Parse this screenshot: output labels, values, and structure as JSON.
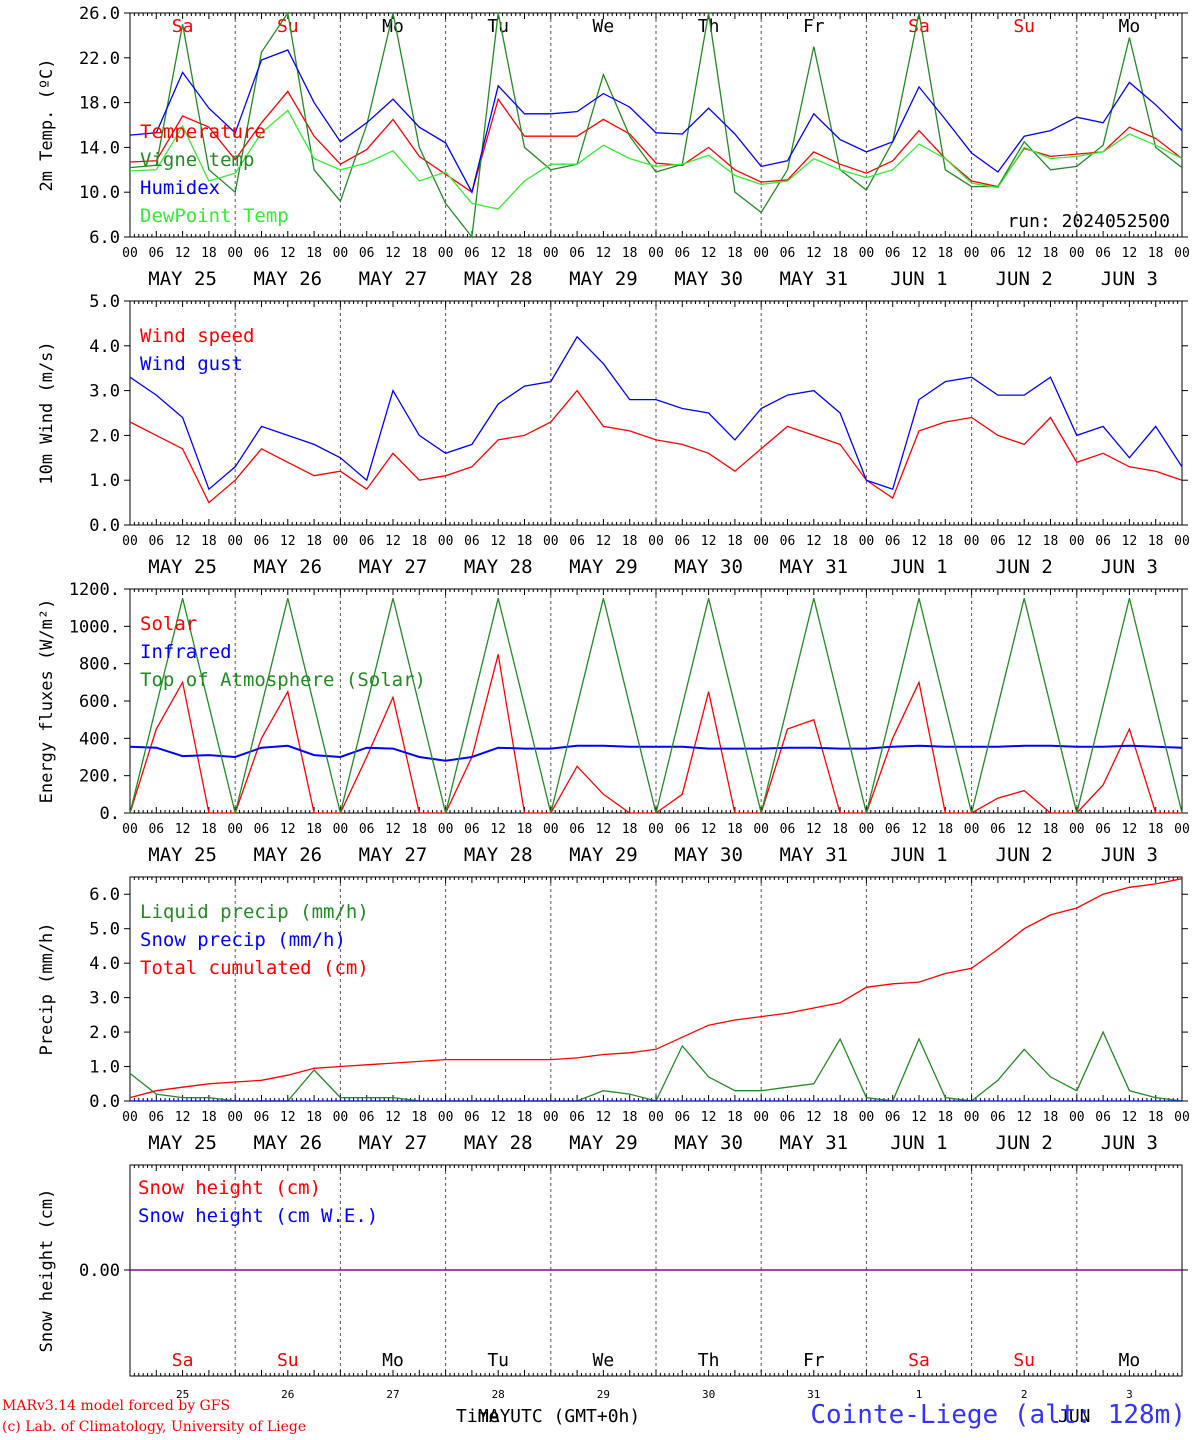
{
  "run_label": "run: 2024052500",
  "footer": {
    "credit_line1": "MARv3.14 model forced by GFS",
    "credit_line2": "(c) Lab. of Climatology, University of Liege",
    "x_title": "Time UTC (GMT+0h)",
    "month_label_1": "MAY",
    "month_label_2": "JUN",
    "station": "Cointe-Liege (alt: 128m)"
  },
  "days": {
    "weekday_labels": [
      "Sa",
      "Su",
      "Mo",
      "Tu",
      "We",
      "Th",
      "Fr",
      "Sa",
      "Su",
      "Mo"
    ],
    "weekend_flags": [
      true,
      true,
      false,
      false,
      false,
      false,
      false,
      true,
      true,
      false
    ],
    "date_labels": [
      "MAY 25",
      "MAY 26",
      "MAY 27",
      "MAY 28",
      "MAY 29",
      "MAY 30",
      "MAY 31",
      "JUN  1",
      "JUN  2",
      "JUN  3"
    ],
    "day_numbers": [
      "25",
      "26",
      "27",
      "28",
      "29",
      "30",
      "31",
      "1",
      "2",
      "3"
    ],
    "hour_ticks": [
      "00",
      "06",
      "12",
      "18"
    ],
    "final_tick": "00"
  },
  "colors": {
    "red": "#ff0000",
    "green": "#228b22",
    "blue": "#0000ff",
    "light_green": "#33ee33",
    "purple": "#7f007f",
    "axis": "#000000"
  },
  "chart_data": [
    {
      "type": "line",
      "ylabel": "2m Temp. (ºC)",
      "ylim": [
        6,
        26
      ],
      "yticks": [
        "6.0",
        "10.0",
        "14.0",
        "18.0",
        "22.0",
        "26.0"
      ],
      "x_unit": "hours since 2024-05-25 00 UTC",
      "x": [
        0,
        6,
        12,
        18,
        24,
        30,
        36,
        42,
        48,
        54,
        60,
        66,
        72,
        78,
        84,
        90,
        96,
        102,
        108,
        114,
        120,
        126,
        132,
        138,
        144,
        150,
        156,
        162,
        168,
        174,
        180,
        186,
        192,
        198,
        204,
        210,
        216,
        222,
        228,
        234,
        240
      ],
      "series": [
        {
          "name": "Temperature",
          "color": "red",
          "values": [
            12.7,
            12.8,
            16.8,
            15.8,
            12.9,
            16.2,
            19.0,
            15.0,
            12.5,
            13.8,
            16.5,
            13.2,
            11.6,
            10.0,
            18.3,
            15.0,
            15.0,
            15.0,
            16.5,
            15.2,
            12.6,
            12.4,
            14.0,
            12.0,
            10.9,
            11.1,
            13.6,
            12.5,
            11.7,
            12.8,
            15.5,
            13.0,
            11.0,
            10.5,
            13.9,
            13.2,
            13.4,
            13.6,
            15.8,
            14.8,
            13.0
          ]
        },
        {
          "name": "Vigne temp",
          "color": "green",
          "values": [
            12.2,
            12.4,
            25.0,
            12.0,
            10.0,
            22.5,
            26.0,
            12.0,
            9.2,
            16.0,
            26.0,
            14.0,
            9.0,
            6.0,
            26.0,
            14.0,
            12.0,
            12.5,
            20.5,
            15.0,
            11.8,
            12.5,
            26.0,
            10.0,
            8.2,
            12.0,
            23.0,
            12.0,
            10.2,
            14.5,
            26.0,
            12.0,
            10.5,
            10.5,
            14.5,
            12.0,
            12.3,
            14.2,
            23.8,
            14.0,
            12.2
          ]
        },
        {
          "name": "Humidex",
          "color": "blue",
          "values": [
            15.1,
            15.3,
            20.7,
            17.5,
            15.3,
            21.8,
            22.7,
            18.0,
            14.5,
            16.2,
            18.3,
            15.8,
            14.4,
            10.0,
            19.5,
            17.0,
            17.0,
            17.2,
            18.8,
            17.6,
            15.3,
            15.2,
            17.5,
            15.2,
            12.3,
            12.8,
            17.0,
            14.7,
            13.6,
            14.5,
            19.4,
            16.5,
            13.5,
            11.8,
            15.0,
            15.5,
            16.7,
            16.2,
            19.8,
            17.8,
            15.5
          ]
        },
        {
          "name": "DewPoint Temp",
          "color": "light_green",
          "values": [
            11.9,
            12.0,
            15.9,
            11.0,
            11.7,
            15.3,
            17.3,
            13.0,
            12.0,
            12.6,
            13.7,
            11.0,
            11.8,
            9.0,
            8.5,
            11.0,
            12.5,
            12.5,
            14.2,
            13.0,
            12.3,
            12.5,
            13.3,
            11.5,
            10.7,
            11.0,
            13.0,
            12.0,
            11.3,
            12.0,
            14.3,
            13.0,
            10.8,
            10.4,
            14.0,
            13.0,
            13.2,
            13.6,
            15.2,
            14.2,
            13.0
          ]
        }
      ]
    },
    {
      "type": "line",
      "ylabel": "10m Wind (m/s)",
      "ylim": [
        0,
        5
      ],
      "yticks": [
        "0.0",
        "1.0",
        "2.0",
        "3.0",
        "4.0",
        "5.0"
      ],
      "x_unit": "hours since 2024-05-25 00 UTC",
      "x": [
        0,
        6,
        12,
        18,
        24,
        30,
        36,
        42,
        48,
        54,
        60,
        66,
        72,
        78,
        84,
        90,
        96,
        102,
        108,
        114,
        120,
        126,
        132,
        138,
        144,
        150,
        156,
        162,
        168,
        174,
        180,
        186,
        192,
        198,
        204,
        210,
        216,
        222,
        228,
        234,
        240
      ],
      "series": [
        {
          "name": "Wind speed",
          "color": "red",
          "values": [
            2.3,
            2.0,
            1.7,
            0.5,
            1.0,
            1.7,
            1.4,
            1.1,
            1.2,
            0.8,
            1.6,
            1.0,
            1.1,
            1.3,
            1.9,
            2.0,
            2.3,
            3.0,
            2.2,
            2.1,
            1.9,
            1.8,
            1.6,
            1.2,
            1.7,
            2.2,
            2.0,
            1.8,
            1.0,
            0.6,
            2.1,
            2.3,
            2.4,
            2.0,
            1.8,
            2.4,
            1.4,
            1.6,
            1.3,
            1.2,
            1.0
          ]
        },
        {
          "name": "Wind gust",
          "color": "blue",
          "values": [
            3.3,
            2.9,
            2.4,
            0.8,
            1.3,
            2.2,
            2.0,
            1.8,
            1.5,
            1.0,
            3.0,
            2.0,
            1.6,
            1.8,
            2.7,
            3.1,
            3.2,
            4.2,
            3.6,
            2.8,
            2.8,
            2.6,
            2.5,
            1.9,
            2.6,
            2.9,
            3.0,
            2.5,
            1.0,
            0.8,
            2.8,
            3.2,
            3.3,
            2.9,
            2.9,
            3.3,
            2.0,
            2.2,
            1.5,
            2.2,
            1.3
          ]
        }
      ]
    },
    {
      "type": "line",
      "ylabel": "Energy fluxes (W/m²)",
      "ylim": [
        0,
        1200
      ],
      "yticks": [
        "0.",
        "200.",
        "400.",
        "600.",
        "800.",
        "1000.",
        "1200."
      ],
      "x_unit": "hours since 2024-05-25 00 UTC",
      "x": [
        0,
        6,
        12,
        18,
        24,
        30,
        36,
        42,
        48,
        54,
        60,
        66,
        72,
        78,
        84,
        90,
        96,
        102,
        108,
        114,
        120,
        126,
        132,
        138,
        144,
        150,
        156,
        162,
        168,
        174,
        180,
        186,
        192,
        198,
        204,
        210,
        216,
        222,
        228,
        234,
        240
      ],
      "series": [
        {
          "name": "Solar",
          "color": "red",
          "values": [
            0,
            450,
            700,
            0,
            0,
            400,
            650,
            0,
            0,
            300,
            620,
            0,
            0,
            300,
            850,
            0,
            0,
            250,
            100,
            0,
            0,
            100,
            650,
            0,
            0,
            450,
            500,
            0,
            0,
            400,
            700,
            0,
            0,
            80,
            120,
            0,
            0,
            150,
            450,
            0,
            0
          ]
        },
        {
          "name": "Infrared",
          "color": "blue",
          "values": [
            355,
            350,
            305,
            310,
            300,
            350,
            360,
            310,
            300,
            350,
            345,
            300,
            280,
            300,
            350,
            345,
            345,
            360,
            360,
            355,
            355,
            355,
            345,
            345,
            345,
            350,
            350,
            345,
            345,
            355,
            360,
            355,
            355,
            355,
            360,
            360,
            355,
            355,
            360,
            355,
            350
          ]
        },
        {
          "name": "Top of Atmosphere (Solar)",
          "color": "green",
          "values": [
            0,
            575,
            1150,
            575,
            0,
            575,
            1150,
            575,
            0,
            575,
            1150,
            575,
            0,
            575,
            1150,
            575,
            0,
            575,
            1150,
            575,
            0,
            575,
            1150,
            575,
            0,
            575,
            1150,
            575,
            0,
            575,
            1150,
            575,
            0,
            575,
            1150,
            575,
            0,
            575,
            1150,
            575,
            0
          ]
        }
      ]
    },
    {
      "type": "line",
      "ylabel": "Precip (mm/h)",
      "ylim": [
        0,
        6.5
      ],
      "yticks": [
        "0.0",
        "1.0",
        "2.0",
        "3.0",
        "4.0",
        "5.0",
        "6.0"
      ],
      "x_unit": "hours since 2024-05-25 00 UTC",
      "x": [
        0,
        6,
        12,
        18,
        24,
        30,
        36,
        42,
        48,
        54,
        60,
        66,
        72,
        78,
        84,
        90,
        96,
        102,
        108,
        114,
        120,
        126,
        132,
        138,
        144,
        150,
        156,
        162,
        168,
        174,
        180,
        186,
        192,
        198,
        204,
        210,
        216,
        222,
        228,
        234,
        240
      ],
      "series": [
        {
          "name": "Liquid precip (mm/h)",
          "color": "green",
          "values": [
            0.8,
            0.2,
            0.1,
            0.1,
            0.0,
            0.0,
            0.0,
            0.9,
            0.1,
            0.1,
            0.1,
            0.0,
            0.0,
            0.0,
            0.0,
            0.0,
            0.0,
            0.0,
            0.3,
            0.2,
            0.0,
            1.6,
            0.7,
            0.3,
            0.3,
            0.4,
            0.5,
            1.8,
            0.1,
            0.0,
            1.8,
            0.1,
            0.0,
            0.6,
            1.5,
            0.7,
            0.3,
            2.0,
            0.3,
            0.1,
            0.0
          ]
        },
        {
          "name": "Snow precip (mm/h)",
          "color": "blue",
          "values": [
            0,
            0,
            0,
            0,
            0,
            0,
            0,
            0,
            0,
            0,
            0,
            0,
            0,
            0,
            0,
            0,
            0,
            0,
            0,
            0,
            0,
            0,
            0,
            0,
            0,
            0,
            0,
            0,
            0,
            0,
            0,
            0,
            0,
            0,
            0,
            0,
            0,
            0,
            0,
            0,
            0
          ]
        },
        {
          "name": "Total cumulated (cm)",
          "color": "red",
          "values": [
            0.1,
            0.3,
            0.4,
            0.5,
            0.55,
            0.6,
            0.75,
            0.95,
            1.0,
            1.05,
            1.1,
            1.15,
            1.2,
            1.2,
            1.2,
            1.2,
            1.2,
            1.25,
            1.35,
            1.4,
            1.5,
            1.85,
            2.2,
            2.35,
            2.45,
            2.55,
            2.7,
            2.85,
            3.3,
            3.4,
            3.45,
            3.7,
            3.85,
            4.4,
            5.0,
            5.4,
            5.6,
            6.0,
            6.2,
            6.3,
            6.45
          ]
        }
      ]
    },
    {
      "type": "line",
      "ylabel": "Snow height (cm)",
      "yticks": [
        "0.00"
      ],
      "x_unit": "hours since 2024-05-25 00 UTC",
      "x": [
        0,
        240
      ],
      "series": [
        {
          "name": "Snow height (cm)",
          "color": "red",
          "values": [
            0,
            0
          ]
        },
        {
          "name": "Snow height (cm W.E.)",
          "color": "blue",
          "values": [
            0,
            0
          ]
        }
      ]
    }
  ]
}
